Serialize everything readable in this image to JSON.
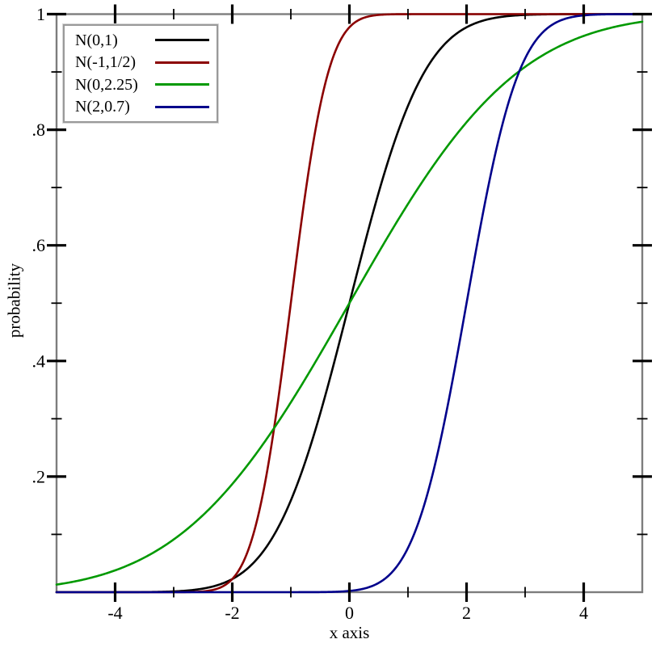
{
  "chart_data": {
    "type": "line",
    "title": "",
    "xlabel": "x axis",
    "ylabel": "probability",
    "x_range": [
      -5,
      5
    ],
    "y_range": [
      0,
      1
    ],
    "grid": false,
    "legend_position": "top-left",
    "background": "#ffffff",
    "frame_color": "#7d7d7d",
    "tick_color": "#000000",
    "x_ticks": {
      "major": [
        -4,
        -2,
        0,
        2,
        4
      ],
      "major_labels": [
        "-4",
        "-2",
        "0",
        "2",
        "4"
      ],
      "minor": [
        -3,
        -1,
        1,
        3
      ]
    },
    "y_ticks": {
      "major": [
        0.2,
        0.4,
        0.6,
        0.8,
        1
      ],
      "major_labels": [
        ".2",
        ".4",
        ".6",
        ".8",
        "1"
      ],
      "minor": [
        0.1,
        0.3,
        0.5,
        0.7,
        0.9
      ]
    },
    "series": [
      {
        "label": "N(0,1)",
        "curve": "normal-cdf",
        "mean": 0,
        "sd": 1,
        "color": "#000000"
      },
      {
        "label": "N(-1,1/2)",
        "curve": "normal-cdf",
        "mean": -1,
        "sd": 0.5,
        "color": "#8b0000"
      },
      {
        "label": "N(0,2.25)",
        "curve": "normal-cdf",
        "mean": 0,
        "sd": 2.25,
        "color": "#009900"
      },
      {
        "label": "N(2,0.7)",
        "curve": "normal-cdf",
        "mean": 2,
        "sd": 0.7,
        "color": "#00008b"
      }
    ]
  }
}
